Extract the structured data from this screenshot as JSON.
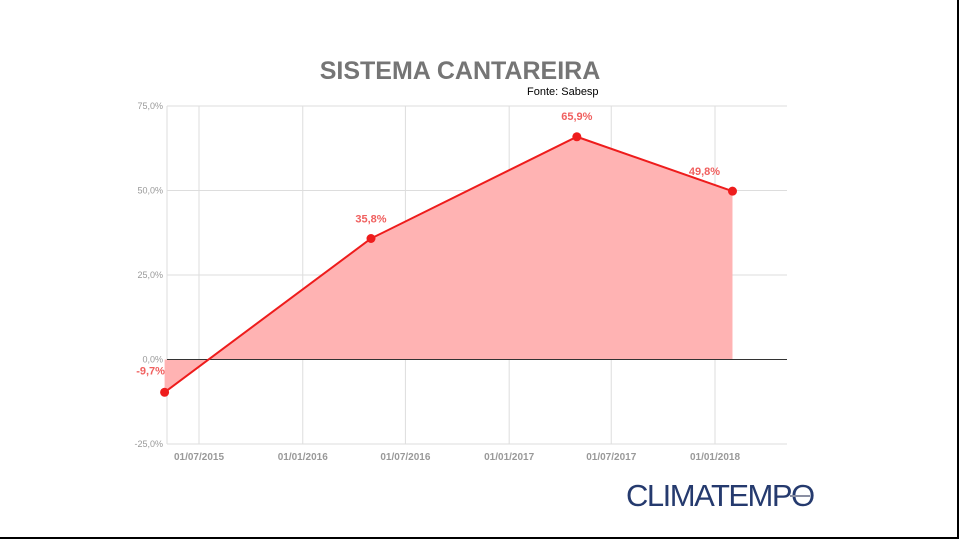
{
  "title": "SISTEMA CANTAREIRA",
  "source": "Fonte: Sabesp",
  "logo": "CLIMATEMPO",
  "colors": {
    "line": "#ee1c1c",
    "fill": "#ffb3b3",
    "label": "#f0605f",
    "grid": "#dddddd",
    "axis_text": "#999999",
    "title": "#757575",
    "logo": "#253a6e"
  },
  "chart_data": {
    "type": "area",
    "title": "SISTEMA CANTAREIRA",
    "subtitle": "Fonte: Sabesp",
    "x": [
      "01/05/2015",
      "01/05/2016",
      "01/05/2017",
      "01/02/2018"
    ],
    "series": [
      {
        "values": [
          -9.7,
          35.8,
          65.9,
          49.8
        ]
      }
    ],
    "data_labels": [
      "-9,7%",
      "35,8%",
      "65,9%",
      "49,8%"
    ],
    "x_ticks": [
      "01/07/2015",
      "01/01/2016",
      "01/07/2016",
      "01/01/2017",
      "01/07/2017",
      "01/01/2018"
    ],
    "y_ticks": [
      "75,0%",
      "50,0%",
      "25,0%",
      "0,0%",
      "-25,0%"
    ],
    "ylim": [
      -25,
      75
    ],
    "grid": true,
    "legend": "none"
  }
}
